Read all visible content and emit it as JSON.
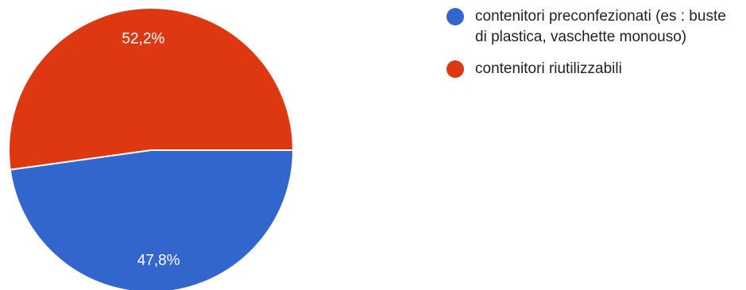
{
  "chart_data": {
    "type": "pie",
    "title": "",
    "series": [
      {
        "label": "contenitori preconfezionati (es : buste di plastica, vaschette monouso)",
        "value": 47.8,
        "display": "47,8%",
        "color": "#3366cc"
      },
      {
        "label": "contenitori riutilizzabili",
        "value": 52.2,
        "display": "52,2%",
        "color": "#dc3912"
      }
    ],
    "legend_position": "right"
  }
}
